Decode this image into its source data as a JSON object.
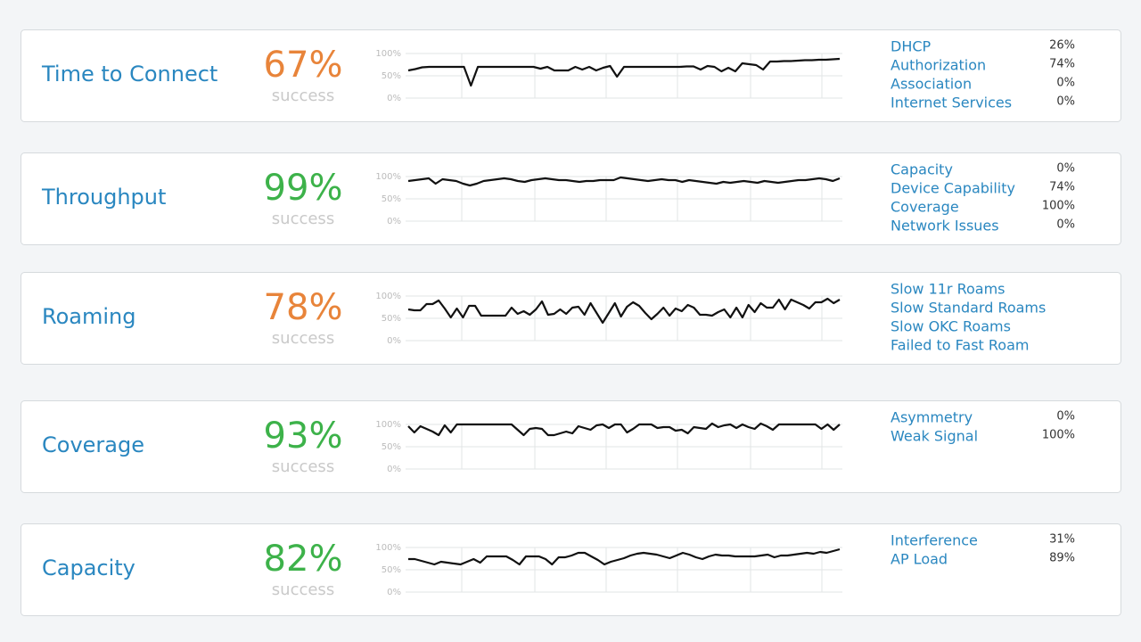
{
  "line_color": "#111111",
  "ylim": [
    0,
    100
  ],
  "cards": [
    {
      "title": "Time to Connect",
      "score": "67%",
      "score_color": "#e8843a",
      "score_label": "success",
      "yticks": [
        {
          "value": 100,
          "label": "100%"
        },
        {
          "value": 50,
          "label": "50%"
        },
        {
          "value": 0,
          "label": "0%"
        }
      ],
      "values": [
        62,
        65,
        69,
        70,
        70,
        70,
        70,
        70,
        70,
        28,
        70,
        70,
        70,
        70,
        70,
        70,
        70,
        70,
        70,
        66,
        70,
        62,
        62,
        62,
        70,
        64,
        70,
        62,
        68,
        72,
        48,
        70,
        70,
        70,
        70,
        70,
        70,
        70,
        70,
        70,
        71,
        71,
        64,
        72,
        70,
        60,
        68,
        60,
        78,
        76,
        74,
        64,
        82,
        82,
        83,
        83,
        84,
        85,
        85,
        86,
        86,
        87,
        88
      ],
      "items": [
        {
          "name": "DHCP",
          "value": "26%"
        },
        {
          "name": "Authorization",
          "value": "74%"
        },
        {
          "name": "Association",
          "value": "0%"
        },
        {
          "name": "Internet Services",
          "value": "0%"
        }
      ]
    },
    {
      "title": "Throughput",
      "score": "99%",
      "score_color": "#3db24a",
      "score_label": "success",
      "yticks": [
        {
          "value": 100,
          "label": "100%"
        },
        {
          "value": 50,
          "label": "50%"
        },
        {
          "value": 0,
          "label": "0%"
        }
      ],
      "values": [
        90,
        92,
        94,
        96,
        84,
        94,
        92,
        90,
        84,
        80,
        84,
        90,
        92,
        94,
        96,
        94,
        90,
        88,
        92,
        94,
        96,
        94,
        92,
        92,
        90,
        88,
        90,
        90,
        92,
        92,
        92,
        98,
        96,
        94,
        92,
        90,
        92,
        94,
        92,
        92,
        88,
        92,
        90,
        88,
        86,
        84,
        88,
        86,
        88,
        90,
        88,
        86,
        90,
        88,
        86,
        88,
        90,
        92,
        92,
        94,
        96,
        94,
        90,
        96
      ],
      "items": [
        {
          "name": "Capacity",
          "value": "0%"
        },
        {
          "name": "Device Capability",
          "value": "74%"
        },
        {
          "name": "Coverage",
          "value": "100%"
        },
        {
          "name": "Network Issues",
          "value": "0%"
        }
      ]
    },
    {
      "title": "Roaming",
      "score": "78%",
      "score_color": "#e8843a",
      "score_label": "success",
      "yticks": [
        {
          "value": 100,
          "label": "100%"
        },
        {
          "value": 50,
          "label": "50%"
        },
        {
          "value": 0,
          "label": "0%"
        }
      ],
      "values": [
        70,
        68,
        68,
        82,
        82,
        90,
        72,
        52,
        72,
        52,
        78,
        78,
        56,
        56,
        56,
        56,
        56,
        74,
        60,
        66,
        58,
        70,
        88,
        58,
        60,
        70,
        60,
        74,
        76,
        58,
        84,
        62,
        40,
        62,
        84,
        54,
        76,
        86,
        78,
        62,
        48,
        60,
        74,
        56,
        72,
        66,
        80,
        74,
        58,
        58,
        56,
        64,
        70,
        52,
        74,
        52,
        80,
        64,
        84,
        74,
        74,
        92,
        70,
        92,
        86,
        80,
        72,
        86,
        86,
        94,
        84,
        92
      ],
      "items": [
        {
          "name": "Slow 11r Roams"
        },
        {
          "name": "Slow Standard Roams"
        },
        {
          "name": "Slow OKC Roams"
        },
        {
          "name": "Failed to Fast Roam"
        }
      ]
    },
    {
      "title": "Coverage",
      "score": "93%",
      "score_color": "#3db24a",
      "score_label": "success",
      "yticks": [
        {
          "value": 100,
          "label": "100%"
        },
        {
          "value": 50,
          "label": "50%"
        },
        {
          "value": 0,
          "label": "0%"
        }
      ],
      "values": [
        96,
        82,
        96,
        90,
        84,
        76,
        98,
        82,
        100,
        100,
        100,
        100,
        100,
        100,
        100,
        100,
        100,
        100,
        88,
        76,
        90,
        92,
        90,
        76,
        76,
        80,
        84,
        80,
        96,
        92,
        88,
        98,
        100,
        92,
        100,
        100,
        82,
        90,
        100,
        100,
        100,
        92,
        94,
        94,
        86,
        88,
        80,
        94,
        92,
        90,
        102,
        94,
        98,
        100,
        92,
        100,
        94,
        90,
        102,
        96,
        88,
        100,
        100,
        100,
        100,
        100,
        100,
        100,
        90,
        100,
        88,
        100
      ],
      "items": [
        {
          "name": "Asymmetry",
          "value": "0%"
        },
        {
          "name": "Weak Signal",
          "value": "100%"
        }
      ]
    },
    {
      "title": "Capacity",
      "score": "82%",
      "score_color": "#3db24a",
      "score_label": "success",
      "yticks": [
        {
          "value": 100,
          "label": "100%"
        },
        {
          "value": 50,
          "label": "50%"
        },
        {
          "value": 0,
          "label": "0%"
        }
      ],
      "values": [
        74,
        74,
        70,
        66,
        62,
        68,
        66,
        64,
        62,
        68,
        74,
        66,
        80,
        80,
        80,
        80,
        72,
        62,
        80,
        80,
        80,
        74,
        62,
        78,
        78,
        82,
        88,
        88,
        80,
        72,
        62,
        68,
        72,
        76,
        82,
        86,
        88,
        86,
        84,
        80,
        76,
        82,
        88,
        84,
        78,
        74,
        80,
        84,
        82,
        82,
        80,
        80,
        80,
        80,
        82,
        84,
        78,
        82,
        82,
        84,
        86,
        88,
        86,
        90,
        88,
        92,
        96
      ],
      "items": [
        {
          "name": "Interference",
          "value": "31%"
        },
        {
          "name": "AP Load",
          "value": "89%"
        }
      ]
    }
  ]
}
